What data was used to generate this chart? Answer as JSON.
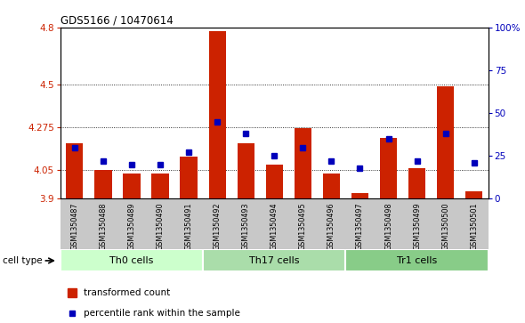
{
  "title": "GDS5166 / 10470614",
  "samples": [
    "GSM1350487",
    "GSM1350488",
    "GSM1350489",
    "GSM1350490",
    "GSM1350491",
    "GSM1350492",
    "GSM1350493",
    "GSM1350494",
    "GSM1350495",
    "GSM1350496",
    "GSM1350497",
    "GSM1350498",
    "GSM1350499",
    "GSM1350500",
    "GSM1350501"
  ],
  "red_values": [
    4.19,
    4.05,
    4.03,
    4.03,
    4.12,
    4.78,
    4.19,
    4.08,
    4.27,
    4.03,
    3.93,
    4.22,
    4.06,
    4.49,
    3.94
  ],
  "blue_percentiles": [
    0.3,
    0.22,
    0.2,
    0.2,
    0.27,
    0.45,
    0.38,
    0.25,
    0.3,
    0.22,
    0.18,
    0.35,
    0.22,
    0.38,
    0.21
  ],
  "cell_types": [
    "Th0 cells",
    "Th17 cells",
    "Tr1 cells"
  ],
  "cell_type_ranges": [
    [
      0,
      4
    ],
    [
      5,
      9
    ],
    [
      10,
      14
    ]
  ],
  "cell_type_colors": [
    "#ccffcc",
    "#aaddaa",
    "#88cc88"
  ],
  "ymin": 3.9,
  "ymax": 4.8,
  "yticks": [
    3.9,
    4.05,
    4.275,
    4.5,
    4.8
  ],
  "ytick_labels": [
    "3.9",
    "4.05",
    "4.275",
    "4.5",
    "4.8"
  ],
  "right_yticks": [
    0.0,
    0.25,
    0.5,
    0.75,
    1.0
  ],
  "right_ytick_labels": [
    "0",
    "25",
    "50",
    "75",
    "100%"
  ],
  "grid_lines": [
    4.05,
    4.275,
    4.5
  ],
  "bar_color": "#cc2200",
  "blue_color": "#0000bb",
  "sample_bg_color": "#c8c8c8",
  "legend_items": [
    "transformed count",
    "percentile rank within the sample"
  ]
}
